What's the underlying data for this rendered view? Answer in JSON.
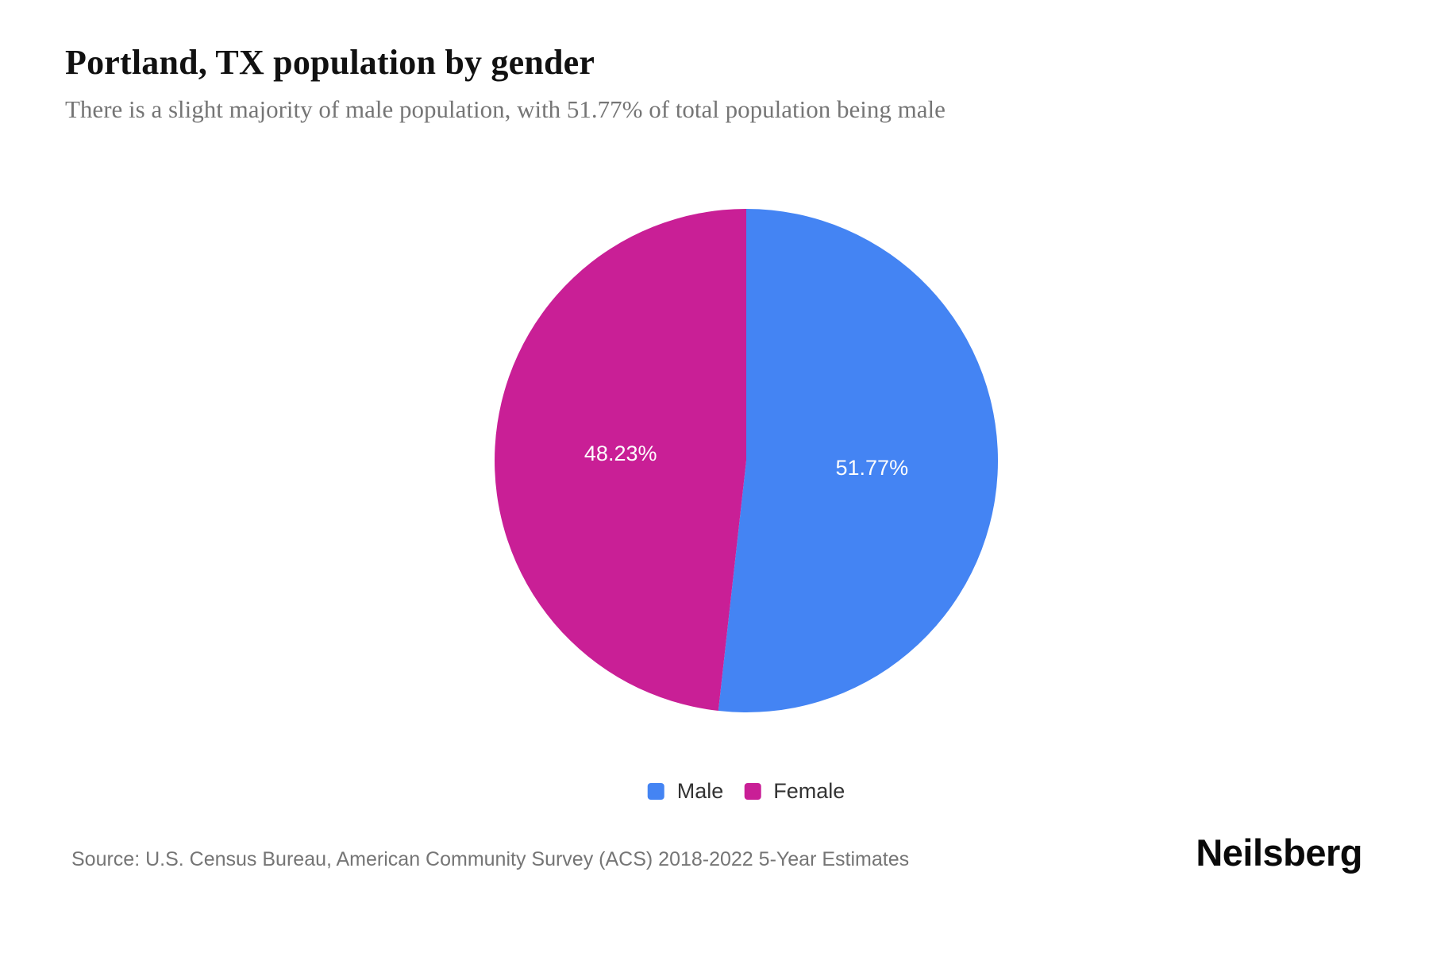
{
  "header": {
    "title": "Portland, TX population by gender",
    "subtitle": "There is a slight majority of male population, with 51.77% of total population being male"
  },
  "chart_data": {
    "type": "pie",
    "title": "Portland, TX population by gender",
    "subtitle": "There is a slight majority of male population, with 51.77% of total population being male",
    "start_angle_deg": 0,
    "direction": "clockwise",
    "labels_position": "inside",
    "legend_position": "bottom-center",
    "series": [
      {
        "name": "Male",
        "value": 51.77,
        "label": "51.77%",
        "color": "#4484F3"
      },
      {
        "name": "Female",
        "value": 48.23,
        "label": "48.23%",
        "color": "#C91F96"
      }
    ]
  },
  "legend": {
    "items": [
      {
        "label": "Male",
        "color": "#4484F3"
      },
      {
        "label": "Female",
        "color": "#C91F96"
      }
    ]
  },
  "footer": {
    "source": "Source: U.S. Census Bureau, American Community Survey (ACS) 2018-2022 5-Year Estimates",
    "brand": "Neilsberg"
  },
  "colors": {
    "male": "#4484F3",
    "female": "#C91F96",
    "title_text": "#111111",
    "muted_text": "#757575",
    "legend_text": "#333333",
    "background": "#ffffff"
  }
}
